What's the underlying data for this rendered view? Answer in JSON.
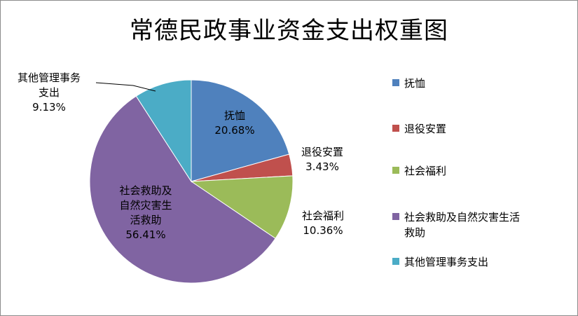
{
  "chart_data": {
    "type": "pie",
    "title": "常德民政事业资金支出权重图",
    "slices": [
      {
        "name": "抚恤",
        "value": 20.68,
        "percent_label": "20.68%",
        "label_lines": [
          "抚恤"
        ],
        "color": "#4f81bd"
      },
      {
        "name": "退役安置",
        "value": 3.43,
        "percent_label": "3.43%",
        "label_lines": [
          "退役安置"
        ],
        "color": "#c0504d"
      },
      {
        "name": "社会福利",
        "value": 10.36,
        "percent_label": "10.36%",
        "label_lines": [
          "社会福利"
        ],
        "color": "#9bbb59"
      },
      {
        "name": "社会救助及自然灾害生活救助",
        "value": 56.41,
        "percent_label": "56.41%",
        "label_lines": [
          "社会救助及",
          "自然灾害生",
          "活救助"
        ],
        "color": "#8064a2"
      },
      {
        "name": "其他管理事务支出",
        "value": 9.13,
        "percent_label": "9.13%",
        "label_lines": [
          "其他管理事务",
          "支出"
        ],
        "color": "#4bacc6"
      }
    ],
    "legend": {
      "position": "right",
      "items": [
        {
          "lines": [
            "抚恤"
          ],
          "color": "#4f81bd"
        },
        {
          "lines": [
            "退役安置"
          ],
          "color": "#c0504d"
        },
        {
          "lines": [
            "社会福利"
          ],
          "color": "#9bbb59"
        },
        {
          "lines": [
            "社会救助及自然灾害生活",
            "救助"
          ],
          "color": "#8064a2"
        },
        {
          "lines": [
            "其他管理事务支出"
          ],
          "color": "#4bacc6"
        }
      ]
    }
  }
}
